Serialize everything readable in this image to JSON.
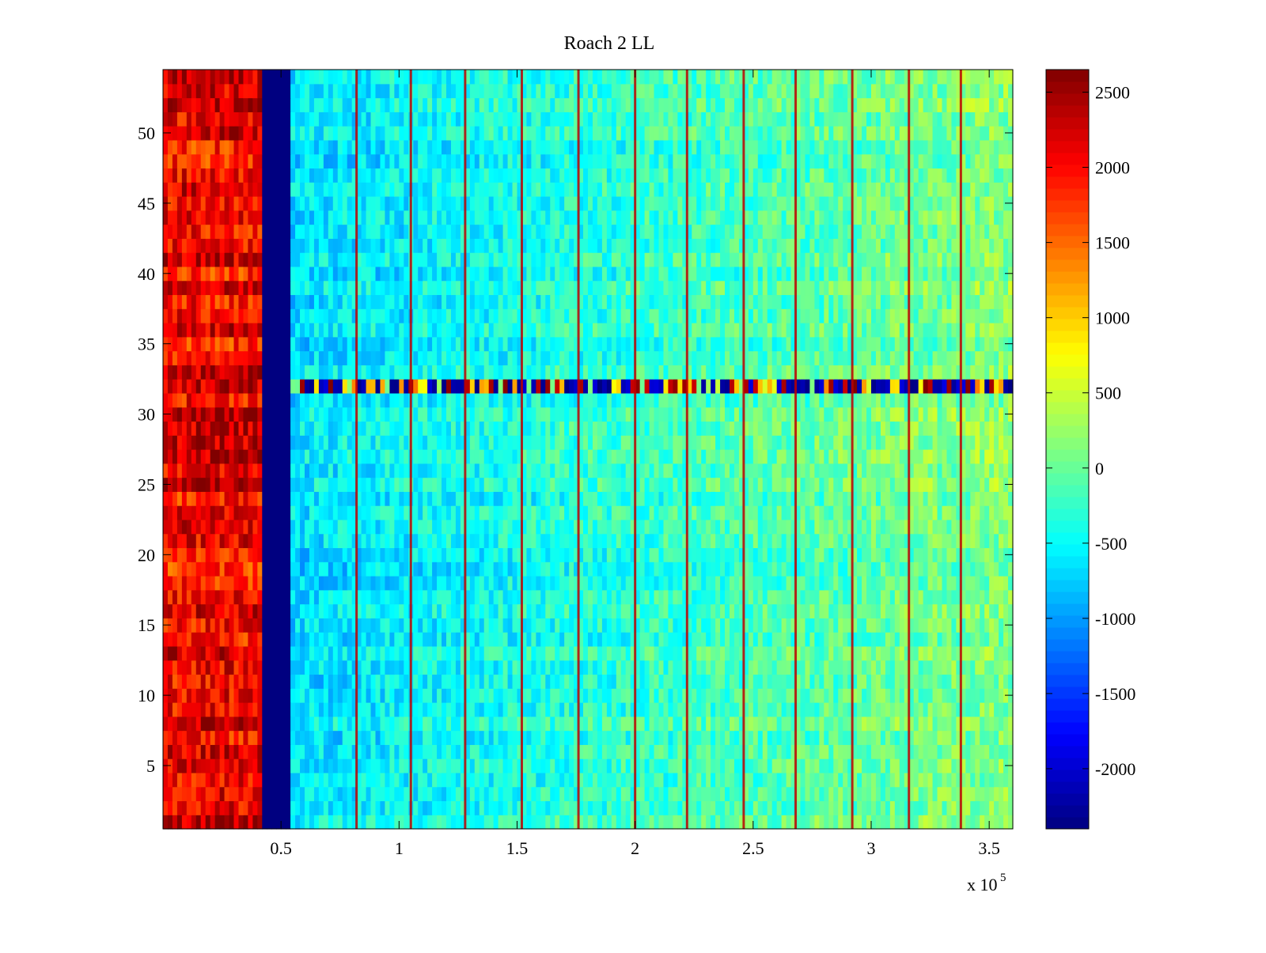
{
  "chart_data": {
    "type": "heatmap",
    "title": "Roach 2 LL",
    "xlabel": "",
    "ylabel": "",
    "x_range": [
      0,
      360000
    ],
    "y_range": [
      0.5,
      54.5
    ],
    "x_ticks": [
      50000,
      100000,
      150000,
      200000,
      250000,
      300000,
      350000
    ],
    "x_tick_labels": [
      "0.5",
      "1",
      "1.5",
      "2",
      "2.5",
      "3",
      "3.5"
    ],
    "x_exponent_label": "x 10",
    "x_exponent_power": "5",
    "y_ticks": [
      5,
      10,
      15,
      20,
      25,
      30,
      35,
      40,
      45,
      50
    ],
    "y_tick_labels": [
      "5",
      "10",
      "15",
      "20",
      "25",
      "30",
      "35",
      "40",
      "45",
      "50"
    ],
    "colormap": "jet",
    "color_range": [
      -2400,
      2650
    ],
    "colorbar_ticks": [
      -2000,
      -1500,
      -1000,
      -500,
      0,
      500,
      1000,
      1500,
      2000,
      2500
    ],
    "colorbar_tick_labels": [
      "-2000",
      "-1500",
      "-1000",
      "-500",
      "0",
      "500",
      "1000",
      "1500",
      "2000",
      "2500"
    ],
    "rows": 54,
    "regions": [
      {
        "x_start": 0,
        "x_end": 42000,
        "level": 2100,
        "description": "high band"
      },
      {
        "x_start": 42000,
        "x_end": 55000,
        "level": -2400,
        "description": "saturated low band"
      },
      {
        "x_start": 55000,
        "x_end": 360000,
        "level_start": -650,
        "level_end": 150
      }
    ],
    "vertical_stripes_x": [
      82000,
      105000,
      128000,
      152000,
      176000,
      200000,
      222000,
      246000,
      268000,
      292000,
      316000,
      338000
    ],
    "anomaly_row": 32
  }
}
